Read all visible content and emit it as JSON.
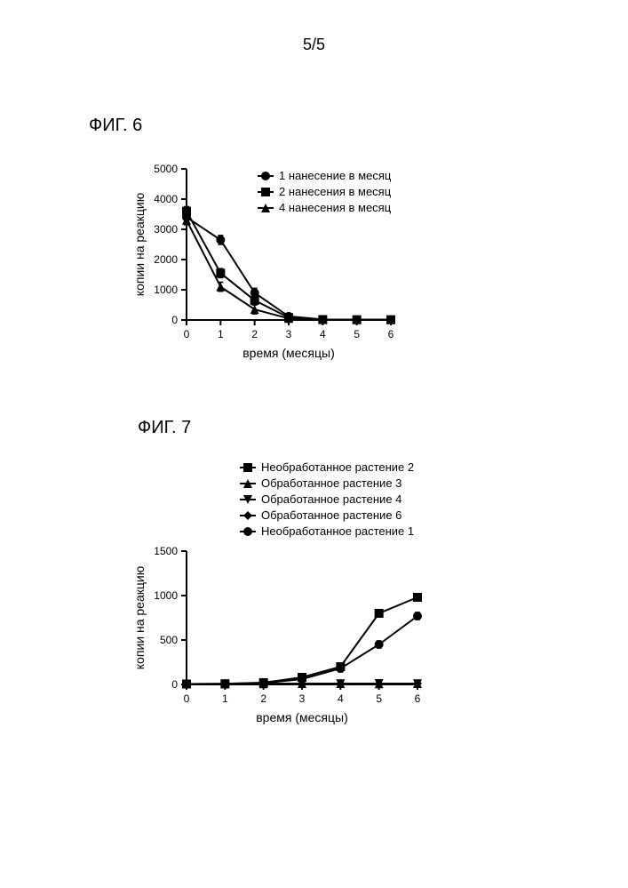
{
  "page": {
    "number": "5/5"
  },
  "fig6": {
    "label": "ФИГ. 6",
    "type": "line",
    "xlabel": "время (месяцы)",
    "ylabel": "копии на реакцию",
    "xlim": [
      0,
      6
    ],
    "ylim": [
      0,
      5000
    ],
    "xticks": [
      0,
      1,
      2,
      3,
      4,
      5,
      6
    ],
    "yticks": [
      0,
      1000,
      2000,
      3000,
      4000,
      5000
    ],
    "axis_color": "#000000",
    "background_color": "#ffffff",
    "tick_fontsize": 12,
    "label_fontsize": 14,
    "legend_fontsize": 13,
    "line_width": 2,
    "marker_size": 5,
    "series": [
      {
        "label": "1 нанесение в месяц",
        "marker": "circle",
        "color": "#000000",
        "x": [
          0,
          1,
          2,
          3,
          4,
          5,
          6
        ],
        "y": [
          3400,
          2650,
          900,
          120,
          20,
          10,
          10
        ]
      },
      {
        "label": "2 нанесения в месяц",
        "marker": "square",
        "color": "#000000",
        "x": [
          0,
          1,
          2,
          3,
          4,
          5,
          6
        ],
        "y": [
          3600,
          1550,
          650,
          80,
          15,
          10,
          10
        ]
      },
      {
        "label": "4 нанесения в месяц",
        "marker": "triangle",
        "color": "#000000",
        "x": [
          0,
          1,
          2,
          3,
          4,
          5,
          6
        ],
        "y": [
          3300,
          1100,
          350,
          50,
          10,
          10,
          10
        ]
      }
    ],
    "error_bars": true,
    "error_value": 150
  },
  "fig7": {
    "label": "ФИГ. 7",
    "type": "line",
    "xlabel": "время (месяцы)",
    "ylabel": "копии на реакцию",
    "xlim": [
      0,
      6
    ],
    "ylim": [
      0,
      1500
    ],
    "xticks": [
      0,
      1,
      2,
      3,
      4,
      5,
      6
    ],
    "yticks": [
      0,
      500,
      1000,
      1500
    ],
    "axis_color": "#000000",
    "background_color": "#ffffff",
    "tick_fontsize": 12,
    "label_fontsize": 14,
    "legend_fontsize": 13,
    "line_width": 2,
    "marker_size": 5,
    "series": [
      {
        "label": "Необработанное растение 2",
        "marker": "square",
        "color": "#000000",
        "x": [
          0,
          1,
          2,
          3,
          4,
          5,
          6
        ],
        "y": [
          5,
          8,
          20,
          80,
          200,
          800,
          980
        ]
      },
      {
        "label": "Обработанное растение 3",
        "marker": "triangle",
        "color": "#000000",
        "x": [
          0,
          1,
          2,
          3,
          4,
          5,
          6
        ],
        "y": [
          5,
          5,
          8,
          10,
          10,
          8,
          10
        ]
      },
      {
        "label": "Обработанное растение 4",
        "marker": "triangle-down",
        "color": "#000000",
        "x": [
          0,
          1,
          2,
          3,
          4,
          5,
          6
        ],
        "y": [
          5,
          5,
          6,
          8,
          8,
          10,
          8
        ]
      },
      {
        "label": "Обработанное растение 6",
        "marker": "diamond",
        "color": "#000000",
        "x": [
          0,
          1,
          2,
          3,
          4,
          5,
          6
        ],
        "y": [
          5,
          5,
          5,
          8,
          10,
          8,
          10
        ]
      },
      {
        "label": "Необработанное растение 1",
        "marker": "circle",
        "color": "#000000",
        "x": [
          0,
          1,
          2,
          3,
          4,
          5,
          6
        ],
        "y": [
          5,
          8,
          15,
          60,
          180,
          450,
          770
        ]
      }
    ],
    "error_bars": true,
    "error_value": 40
  }
}
